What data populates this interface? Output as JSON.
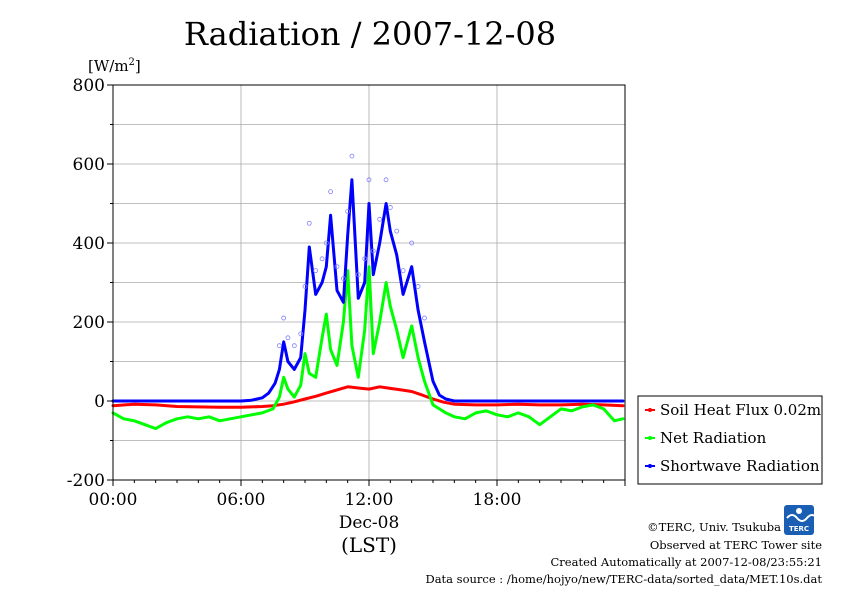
{
  "header": {
    "title": "Radiation / 2007-12-08",
    "unit_label": "[W/m",
    "unit_sup": "2",
    "unit_close": "]"
  },
  "footer": {
    "copyright": "©TERC, Univ. Tsukuba",
    "observed": "Observed at TERC Tower site",
    "created": "Created Automatically at 2007-12-08/23:55:21",
    "source": "Data source : /home/hojyo/new/TERC-data/sorted_data/MET.10s.dat",
    "logo_text": "TERC"
  },
  "chart_data": {
    "type": "line",
    "title": "Radiation / 2007-12-08",
    "ylabel": "[W/m2]",
    "xlabel": "(LST)",
    "x_unit": "hours",
    "xlim": [
      0,
      24
    ],
    "ylim": [
      -200,
      800
    ],
    "y_ticks": [
      -200,
      0,
      200,
      400,
      600,
      800
    ],
    "y_tick_labels": [
      "-200",
      "0",
      "200",
      "400",
      "600",
      "800"
    ],
    "x_ticks": [
      0,
      6,
      12,
      18
    ],
    "x_tick_labels": [
      "00:00",
      "06:00",
      "12:00",
      "18:00"
    ],
    "date_label": "Dec-08",
    "grid": true,
    "legend_position": "right",
    "series": [
      {
        "name": "Soil Heat Flux 0.02m",
        "color": "#ff0000",
        "x": [
          0,
          1,
          2,
          3,
          4,
          5,
          6,
          7,
          7.5,
          8,
          8.5,
          9,
          9.5,
          10,
          10.5,
          11,
          11.5,
          12,
          12.5,
          13,
          13.5,
          14,
          14.5,
          15,
          15.5,
          16,
          17,
          18,
          19,
          20,
          21,
          22,
          23,
          23.9
        ],
        "values": [
          -12,
          -8,
          -10,
          -14,
          -15,
          -16,
          -16,
          -14,
          -12,
          -8,
          -2,
          5,
          12,
          20,
          28,
          36,
          33,
          30,
          36,
          32,
          28,
          24,
          15,
          5,
          -3,
          -8,
          -10,
          -10,
          -8,
          -10,
          -10,
          -8,
          -10,
          -12
        ]
      },
      {
        "name": "Net Radiation",
        "color": "#00ff00",
        "x": [
          0,
          0.5,
          1,
          1.5,
          2,
          2.5,
          3,
          3.5,
          4,
          4.5,
          5,
          5.5,
          6,
          6.5,
          7,
          7.5,
          7.8,
          8,
          8.2,
          8.5,
          8.8,
          9,
          9.2,
          9.5,
          9.8,
          10,
          10.2,
          10.5,
          10.8,
          11,
          11.2,
          11.5,
          11.8,
          12,
          12.2,
          12.5,
          12.8,
          13,
          13.3,
          13.6,
          14,
          14.3,
          14.6,
          15,
          15.3,
          15.6,
          16,
          16.5,
          17,
          17.5,
          18,
          18.5,
          19,
          19.5,
          20,
          20.5,
          21,
          21.5,
          22,
          22.5,
          23,
          23.5,
          23.9
        ],
        "values": [
          -30,
          -45,
          -50,
          -60,
          -70,
          -55,
          -45,
          -40,
          -45,
          -40,
          -50,
          -45,
          -40,
          -35,
          -30,
          -20,
          10,
          60,
          30,
          10,
          40,
          120,
          70,
          60,
          160,
          220,
          130,
          90,
          200,
          330,
          140,
          60,
          180,
          340,
          120,
          200,
          300,
          240,
          180,
          110,
          190,
          110,
          50,
          -10,
          -20,
          -30,
          -40,
          -45,
          -30,
          -25,
          -35,
          -40,
          -30,
          -40,
          -60,
          -40,
          -20,
          -25,
          -15,
          -10,
          -20,
          -50,
          -45
        ]
      },
      {
        "name": "Shortwave Radiation",
        "color": "#0000ff",
        "x": [
          0,
          1,
          2,
          3,
          4,
          5,
          6,
          6.5,
          7,
          7.3,
          7.6,
          7.8,
          8,
          8.2,
          8.5,
          8.8,
          9,
          9.2,
          9.5,
          9.8,
          10,
          10.2,
          10.5,
          10.8,
          11,
          11.2,
          11.5,
          11.8,
          12,
          12.2,
          12.5,
          12.8,
          13,
          13.3,
          13.6,
          14,
          14.3,
          14.6,
          15,
          15.3,
          15.6,
          16,
          16.5,
          17,
          18,
          19,
          20,
          21,
          22,
          23,
          23.9
        ],
        "values": [
          0,
          0,
          0,
          0,
          0,
          0,
          0,
          2,
          8,
          20,
          45,
          80,
          150,
          100,
          80,
          110,
          230,
          390,
          270,
          300,
          340,
          470,
          280,
          250,
          420,
          560,
          260,
          300,
          500,
          320,
          400,
          500,
          430,
          370,
          270,
          340,
          230,
          150,
          50,
          15,
          5,
          0,
          0,
          0,
          0,
          0,
          0,
          0,
          0,
          0,
          0
        ]
      }
    ]
  }
}
